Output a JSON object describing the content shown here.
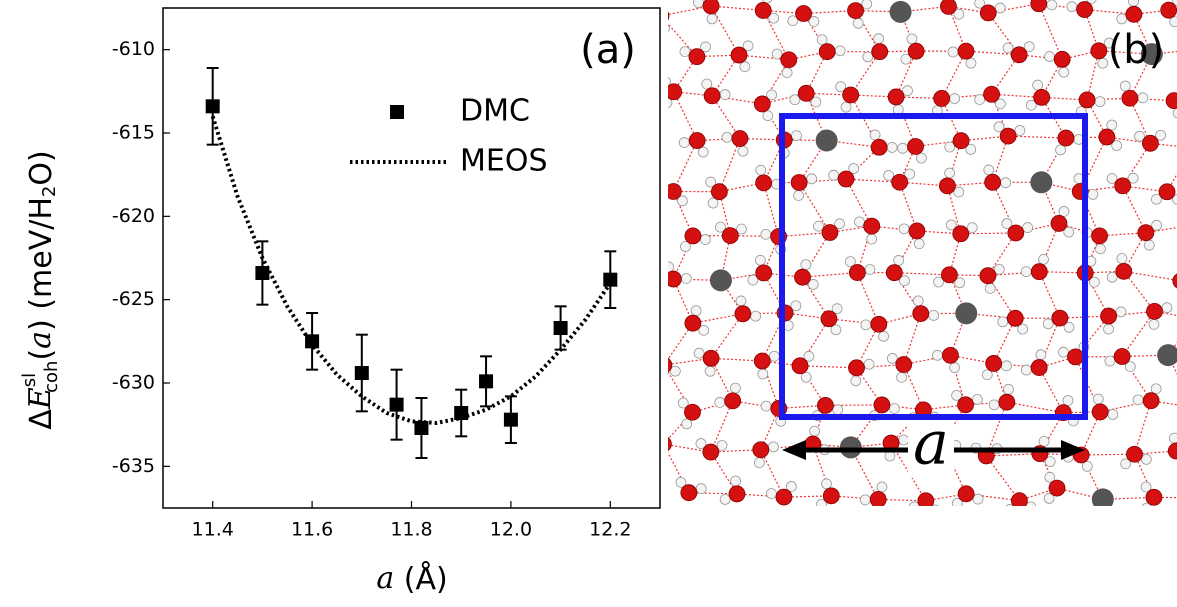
{
  "chart_data": {
    "type": "scatter",
    "panel_label": "(a)",
    "xlabel": [
      "a",
      " (Å)"
    ],
    "ylabel": [
      "Δ",
      "E",
      "sl",
      "coh",
      "(",
      "a",
      ") (meV/H",
      "2",
      "O)"
    ],
    "xlim": [
      11.3,
      12.3
    ],
    "ylim": [
      -637.5,
      -607.5
    ],
    "xticks": [
      11.4,
      11.6,
      11.8,
      {
        "value": 12,
        "label": "12.0"
      },
      12.2
    ],
    "yticks": [
      -635,
      -630,
      -625,
      -620,
      -615,
      -610
    ],
    "series": [
      {
        "name": "DMC",
        "color": "#000000",
        "x": [
          11.4,
          11.5,
          11.6,
          11.7,
          11.77,
          11.82,
          11.9,
          11.95,
          12.0,
          12.1,
          12.2
        ],
        "values": [
          -613.4,
          -623.4,
          -627.5,
          -629.4,
          -631.3,
          -632.7,
          -631.8,
          -629.9,
          -632.2,
          -626.7,
          -623.8
        ],
        "errors": [
          2.3,
          1.9,
          1.7,
          2.3,
          2.1,
          1.8,
          1.4,
          1.5,
          1.4,
          1.3,
          1.7
        ]
      },
      {
        "name": "MEOS",
        "color": "#000000",
        "style": "dotted",
        "x": [
          11.4,
          11.45,
          11.5,
          11.55,
          11.6,
          11.65,
          11.7,
          11.75,
          11.8,
          11.85,
          11.9,
          11.95,
          12.0,
          12.05,
          12.1,
          12.15,
          12.2
        ],
        "values": [
          -614.0,
          -618.8,
          -622.5,
          -625.4,
          -627.7,
          -629.5,
          -630.8,
          -631.8,
          -632.3,
          -632.4,
          -632.1,
          -631.6,
          -630.8,
          -629.6,
          -628.0,
          -626.2,
          -624.0
        ]
      }
    ]
  },
  "image": {
    "panel_label": "(b)",
    "label": "a"
  }
}
